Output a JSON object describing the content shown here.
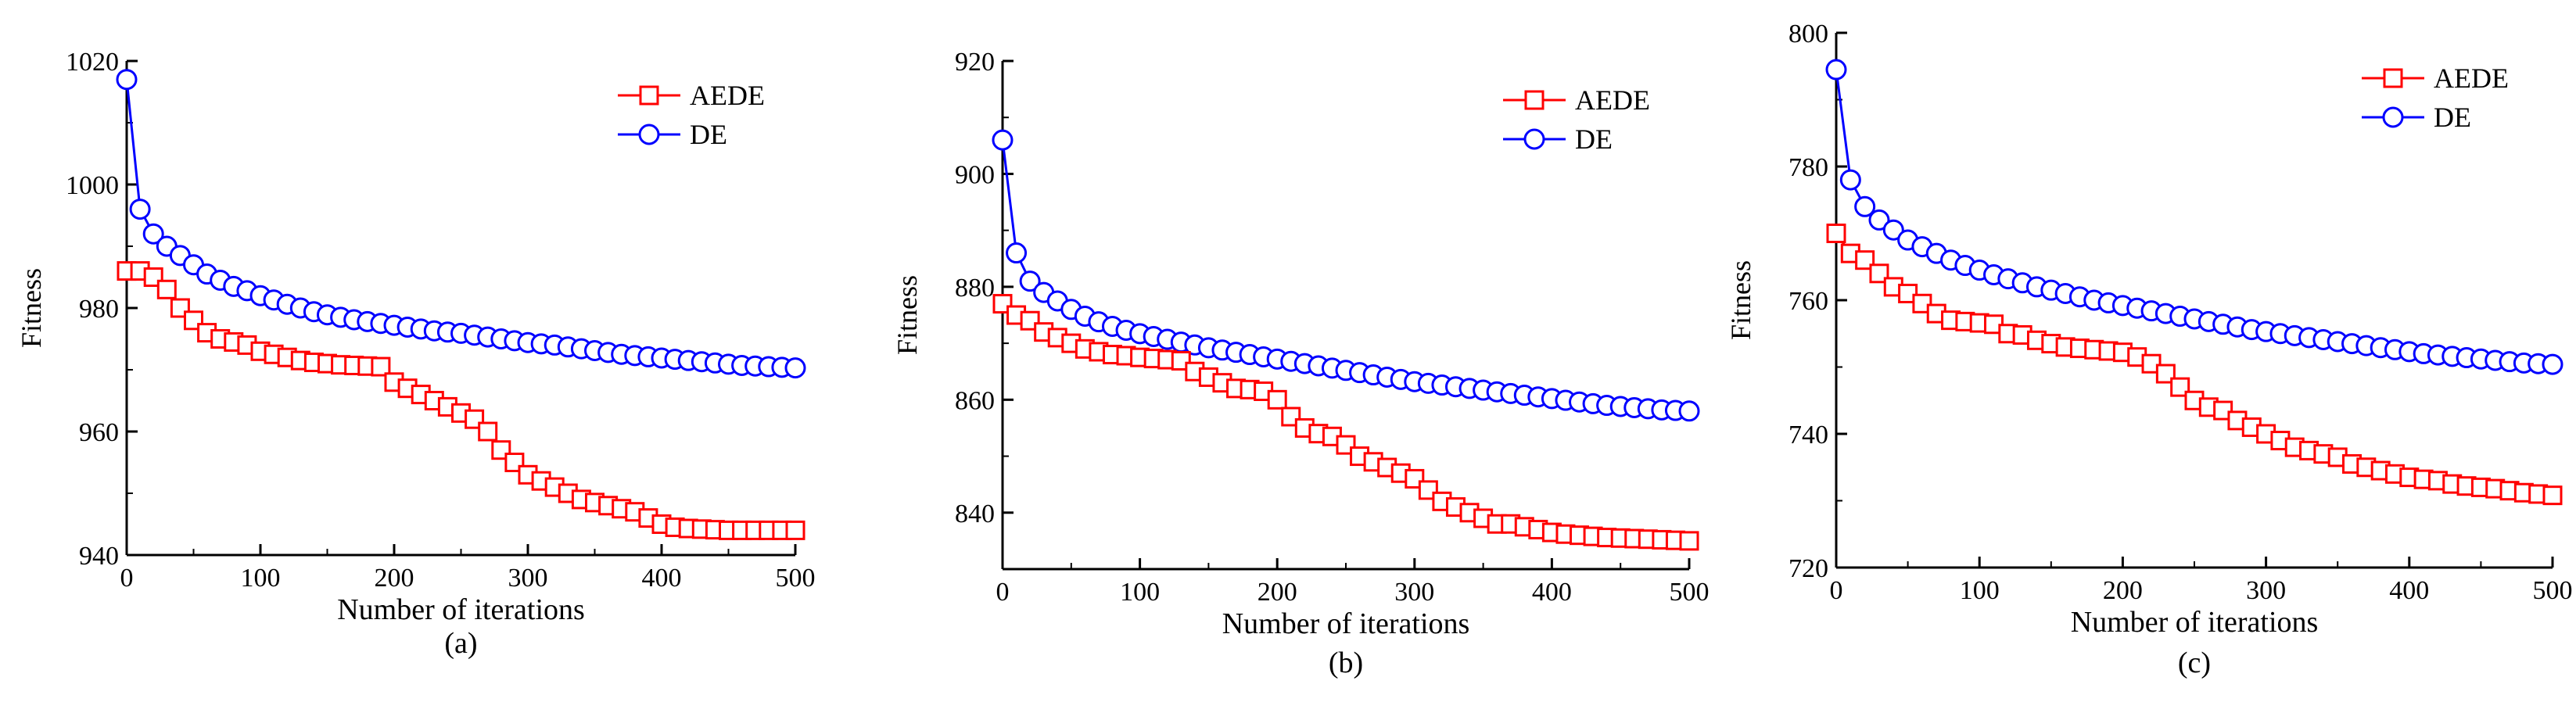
{
  "chart_data": [
    {
      "type": "line",
      "panel_label": "(a)",
      "xlabel": "Number of iterations",
      "ylabel": "Fitness",
      "xlim": [
        0,
        500
      ],
      "ylim": [
        940,
        1020
      ],
      "xticks": [
        0,
        100,
        200,
        300,
        400,
        500
      ],
      "yticks": [
        940,
        960,
        980,
        1000,
        1020
      ],
      "legend_position": "top-right",
      "series": [
        {
          "name": "AEDE",
          "color": "#ff0000",
          "marker": "square",
          "x": [
            0,
            10,
            20,
            30,
            40,
            50,
            60,
            70,
            80,
            90,
            100,
            110,
            120,
            130,
            140,
            150,
            160,
            170,
            180,
            190,
            200,
            210,
            220,
            230,
            240,
            250,
            260,
            270,
            280,
            290,
            300,
            310,
            320,
            330,
            340,
            350,
            360,
            370,
            380,
            390,
            400,
            410,
            420,
            430,
            440,
            450,
            460,
            470,
            480,
            490,
            500
          ],
          "y": [
            986,
            986,
            985,
            983,
            980,
            978,
            976,
            975,
            974.5,
            974,
            973,
            972.5,
            972,
            971.5,
            971.2,
            971,
            970.8,
            970.7,
            970.6,
            970.5,
            968,
            967,
            966,
            965,
            964,
            963,
            962,
            960,
            957,
            955,
            953,
            952,
            951,
            950,
            949,
            948.5,
            948,
            947.5,
            947,
            946,
            945,
            944.5,
            944.3,
            944.2,
            944.1,
            944,
            944,
            944,
            944,
            944,
            944
          ]
        },
        {
          "name": "DE",
          "color": "#0000ff",
          "marker": "circle",
          "x": [
            0,
            10,
            20,
            30,
            40,
            50,
            60,
            70,
            80,
            90,
            100,
            110,
            120,
            130,
            140,
            150,
            160,
            170,
            180,
            190,
            200,
            210,
            220,
            230,
            240,
            250,
            260,
            270,
            280,
            290,
            300,
            310,
            320,
            330,
            340,
            350,
            360,
            370,
            380,
            390,
            400,
            410,
            420,
            430,
            440,
            450,
            460,
            470,
            480,
            490,
            500
          ],
          "y": [
            1017,
            996,
            992,
            990,
            988.5,
            987,
            985.5,
            984.5,
            983.5,
            982.8,
            982,
            981.3,
            980.6,
            980,
            979.4,
            978.9,
            978.5,
            978.1,
            977.8,
            977.5,
            977.2,
            976.9,
            976.6,
            976.3,
            976.1,
            975.9,
            975.6,
            975.3,
            975,
            974.7,
            974.4,
            974.2,
            974,
            973.7,
            973.4,
            973.1,
            972.8,
            972.5,
            972.3,
            972.1,
            971.9,
            971.7,
            971.5,
            971.3,
            971.1,
            970.9,
            970.7,
            970.6,
            970.5,
            970.4,
            970.3
          ]
        }
      ]
    },
    {
      "type": "line",
      "panel_label": "(b)",
      "xlabel": "Number of iterations",
      "ylabel": "Fitness",
      "xlim": [
        0,
        500
      ],
      "ylim": [
        830,
        920
      ],
      "xticks": [
        0,
        100,
        200,
        300,
        400,
        500
      ],
      "yticks": [
        840,
        860,
        880,
        900,
        920
      ],
      "legend_position": "top-right",
      "series": [
        {
          "name": "AEDE",
          "color": "#ff0000",
          "marker": "square",
          "x": [
            0,
            10,
            20,
            30,
            40,
            50,
            60,
            70,
            80,
            90,
            100,
            110,
            120,
            130,
            140,
            150,
            160,
            170,
            180,
            190,
            200,
            210,
            220,
            230,
            240,
            250,
            260,
            270,
            280,
            290,
            300,
            310,
            320,
            330,
            340,
            350,
            360,
            370,
            380,
            390,
            400,
            410,
            420,
            430,
            440,
            450,
            460,
            470,
            480,
            490,
            500
          ],
          "y": [
            877,
            875,
            874,
            872,
            871,
            870,
            869,
            868.5,
            868,
            867.8,
            867.5,
            867.3,
            867.1,
            866.9,
            865,
            864,
            863,
            862,
            861.8,
            861.5,
            860,
            857,
            855,
            854,
            853.5,
            852,
            850,
            849,
            848,
            847,
            846,
            844,
            842,
            841,
            840,
            839,
            838,
            838,
            837.5,
            837,
            836.5,
            836.2,
            836,
            835.8,
            835.6,
            835.5,
            835.4,
            835.3,
            835.2,
            835.1,
            835
          ]
        },
        {
          "name": "DE",
          "color": "#0000ff",
          "marker": "circle",
          "x": [
            0,
            10,
            20,
            30,
            40,
            50,
            60,
            70,
            80,
            90,
            100,
            110,
            120,
            130,
            140,
            150,
            160,
            170,
            180,
            190,
            200,
            210,
            220,
            230,
            240,
            250,
            260,
            270,
            280,
            290,
            300,
            310,
            320,
            330,
            340,
            350,
            360,
            370,
            380,
            390,
            400,
            410,
            420,
            430,
            440,
            450,
            460,
            470,
            480,
            490,
            500
          ],
          "y": [
            906,
            886,
            881,
            879,
            877.5,
            876,
            874.8,
            873.8,
            873,
            872.3,
            871.7,
            871.2,
            870.7,
            870.2,
            869.7,
            869.2,
            868.8,
            868.4,
            868,
            867.6,
            867.2,
            866.8,
            866.4,
            866,
            865.6,
            865.2,
            864.8,
            864.4,
            864,
            863.6,
            863.2,
            862.9,
            862.6,
            862.3,
            862,
            861.7,
            861.4,
            861.1,
            860.8,
            860.5,
            860.2,
            859.9,
            859.6,
            859.3,
            859,
            858.8,
            858.6,
            858.4,
            858.2,
            858.1,
            858
          ]
        }
      ]
    },
    {
      "type": "line",
      "panel_label": "(c)",
      "xlabel": "Number of iterations",
      "ylabel": "Fitness",
      "xlim": [
        0,
        500
      ],
      "ylim": [
        720,
        800
      ],
      "xticks": [
        0,
        100,
        200,
        300,
        400,
        500
      ],
      "yticks": [
        720,
        740,
        760,
        780,
        800
      ],
      "legend_position": "top-right",
      "series": [
        {
          "name": "AEDE",
          "color": "#ff0000",
          "marker": "square",
          "x": [
            0,
            10,
            20,
            30,
            40,
            50,
            60,
            70,
            80,
            90,
            100,
            110,
            120,
            130,
            140,
            150,
            160,
            170,
            180,
            190,
            200,
            210,
            220,
            230,
            240,
            250,
            260,
            270,
            280,
            290,
            300,
            310,
            320,
            330,
            340,
            350,
            360,
            370,
            380,
            390,
            400,
            410,
            420,
            430,
            440,
            450,
            460,
            470,
            480,
            490,
            500
          ],
          "y": [
            770,
            767,
            766,
            764,
            762,
            761,
            759.5,
            758,
            757,
            756.8,
            756.6,
            756.4,
            755,
            754.8,
            754,
            753.5,
            753,
            752.8,
            752.6,
            752.4,
            752.2,
            751.5,
            750.5,
            749,
            747,
            745,
            744,
            743.5,
            742,
            741,
            740,
            739,
            738,
            737.5,
            737,
            736.5,
            735.5,
            735,
            734.5,
            734,
            733.5,
            733.2,
            733,
            732.5,
            732.2,
            732,
            731.8,
            731.5,
            731.2,
            731,
            730.8
          ]
        },
        {
          "name": "DE",
          "color": "#0000ff",
          "marker": "circle",
          "x": [
            0,
            10,
            20,
            30,
            40,
            50,
            60,
            70,
            80,
            90,
            100,
            110,
            120,
            130,
            140,
            150,
            160,
            170,
            180,
            190,
            200,
            210,
            220,
            230,
            240,
            250,
            260,
            270,
            280,
            290,
            300,
            310,
            320,
            330,
            340,
            350,
            360,
            370,
            380,
            390,
            400,
            410,
            420,
            430,
            440,
            450,
            460,
            470,
            480,
            490,
            500
          ],
          "y": [
            794.5,
            778,
            774,
            772,
            770.5,
            769,
            768,
            767,
            766,
            765.2,
            764.5,
            763.8,
            763.2,
            762.6,
            762,
            761.5,
            761,
            760.5,
            760,
            759.6,
            759.2,
            758.8,
            758.4,
            758,
            757.6,
            757.2,
            756.8,
            756.4,
            756,
            755.6,
            755.3,
            755,
            754.7,
            754.4,
            754.1,
            753.8,
            753.5,
            753.2,
            752.9,
            752.6,
            752.3,
            752,
            751.8,
            751.6,
            751.4,
            751.2,
            751,
            750.8,
            750.6,
            750.5,
            750.4
          ]
        }
      ]
    }
  ]
}
